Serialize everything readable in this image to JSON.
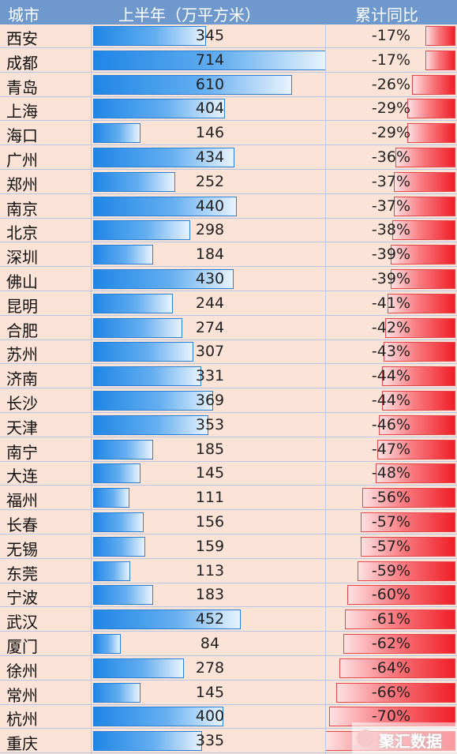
{
  "chart_data": {
    "type": "table",
    "columns": [
      "城市",
      "上半年（万平方米）",
      "累计同比"
    ],
    "rows": [
      {
        "city": "西安",
        "value": 345,
        "yoy": -17,
        "yoy_label": "-17%"
      },
      {
        "city": "成都",
        "value": 714,
        "yoy": -17,
        "yoy_label": "-17%"
      },
      {
        "city": "青岛",
        "value": 610,
        "yoy": -26,
        "yoy_label": "-26%"
      },
      {
        "city": "上海",
        "value": 404,
        "yoy": -29,
        "yoy_label": "-29%"
      },
      {
        "city": "海口",
        "value": 146,
        "yoy": -29,
        "yoy_label": "-29%"
      },
      {
        "city": "广州",
        "value": 434,
        "yoy": -36,
        "yoy_label": "-36%"
      },
      {
        "city": "郑州",
        "value": 252,
        "yoy": -37,
        "yoy_label": "-37%"
      },
      {
        "city": "南京",
        "value": 440,
        "yoy": -37,
        "yoy_label": "-37%"
      },
      {
        "city": "北京",
        "value": 298,
        "yoy": -38,
        "yoy_label": "-38%"
      },
      {
        "city": "深圳",
        "value": 184,
        "yoy": -39,
        "yoy_label": "-39%"
      },
      {
        "city": "佛山",
        "value": 430,
        "yoy": -39,
        "yoy_label": "-39%"
      },
      {
        "city": "昆明",
        "value": 244,
        "yoy": -41,
        "yoy_label": "-41%"
      },
      {
        "city": "合肥",
        "value": 274,
        "yoy": -42,
        "yoy_label": "-42%"
      },
      {
        "city": "苏州",
        "value": 307,
        "yoy": -43,
        "yoy_label": "-43%"
      },
      {
        "city": "济南",
        "value": 331,
        "yoy": -44,
        "yoy_label": "-44%"
      },
      {
        "city": "长沙",
        "value": 369,
        "yoy": -44,
        "yoy_label": "-44%"
      },
      {
        "city": "天津",
        "value": 353,
        "yoy": -46,
        "yoy_label": "-46%"
      },
      {
        "city": "南宁",
        "value": 185,
        "yoy": -47,
        "yoy_label": "-47%"
      },
      {
        "city": "大连",
        "value": 145,
        "yoy": -48,
        "yoy_label": "-48%"
      },
      {
        "city": "福州",
        "value": 111,
        "yoy": -56,
        "yoy_label": "-56%"
      },
      {
        "city": "长春",
        "value": 156,
        "yoy": -57,
        "yoy_label": "-57%"
      },
      {
        "city": "无锡",
        "value": 159,
        "yoy": -57,
        "yoy_label": "-57%"
      },
      {
        "city": "东莞",
        "value": 113,
        "yoy": -59,
        "yoy_label": "-59%"
      },
      {
        "city": "宁波",
        "value": 183,
        "yoy": -60,
        "yoy_label": "-60%"
      },
      {
        "city": "武汉",
        "value": 452,
        "yoy": -61,
        "yoy_label": "-61%"
      },
      {
        "city": "厦门",
        "value": 84,
        "yoy": -62,
        "yoy_label": "-62%"
      },
      {
        "city": "徐州",
        "value": 278,
        "yoy": -64,
        "yoy_label": "-64%"
      },
      {
        "city": "常州",
        "value": 145,
        "yoy": -66,
        "yoy_label": "-66%"
      },
      {
        "city": "杭州",
        "value": 400,
        "yoy": -70,
        "yoy_label": "-70%"
      },
      {
        "city": "重庆",
        "value": 335,
        "yoy": -72,
        "yoy_label": ""
      }
    ],
    "value_max": 714,
    "yoy_max_abs": 72,
    "colors": {
      "header_bg": "#6f98cc",
      "row_bg": "#fbe3d8",
      "value_bar": "#1f86e6",
      "yoy_bar": "#f01e27"
    }
  },
  "watermark": {
    "text": "聚汇数据"
  }
}
